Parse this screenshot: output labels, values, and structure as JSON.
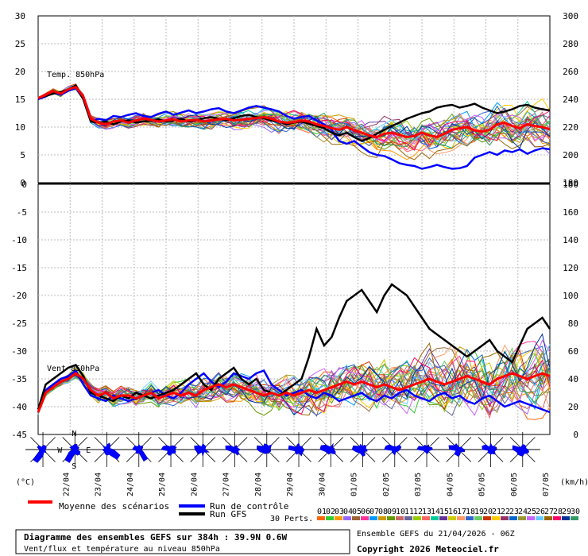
{
  "chart_data": [
    {
      "type": "line",
      "title": "Temp. 850hPa",
      "left_ticks": [
        "30",
        "25",
        "20",
        "15",
        "10",
        "5",
        "0"
      ],
      "right_ticks": [
        "300",
        "280",
        "260",
        "240",
        "220",
        "200",
        "180"
      ],
      "ylim": [
        0,
        30
      ],
      "series": [
        {
          "name": "Moyenne des scénarios",
          "color": "#ff0000",
          "values": [
            15.2,
            15.8,
            16.5,
            16.0,
            16.8,
            17.2,
            15.5,
            11.5,
            10.8,
            10.5,
            11.0,
            11.2,
            10.8,
            11.2,
            11.5,
            11.3,
            11.0,
            11.2,
            11.4,
            11.0,
            11.2,
            11.3,
            11.0,
            11.2,
            11.4,
            11.5,
            11.2,
            11.3,
            11.5,
            11.6,
            11.8,
            11.5,
            11.0,
            10.8,
            10.9,
            11.2,
            11.0,
            10.5,
            10.2,
            9.8,
            9.5,
            10.0,
            9.4,
            9.0,
            8.5,
            8.2,
            8.8,
            9.0,
            8.6,
            8.2,
            8.4,
            9.0,
            8.5,
            8.2,
            8.8,
            9.5,
            9.8,
            10.0,
            9.4,
            9.2,
            9.5,
            10.5,
            10.8,
            10.2,
            9.8,
            10.5,
            10.2,
            10.0,
            9.6
          ]
        },
        {
          "name": "Run de contrôle",
          "color": "#0000ff",
          "values": [
            15.0,
            15.5,
            16.2,
            15.8,
            16.5,
            17.0,
            15.2,
            11.0,
            11.5,
            11.2,
            12.0,
            11.8,
            12.2,
            12.5,
            12.0,
            11.8,
            12.4,
            12.8,
            12.2,
            12.6,
            13.0,
            12.5,
            12.8,
            13.2,
            13.4,
            12.8,
            12.5,
            13.0,
            13.5,
            13.8,
            13.5,
            13.2,
            12.8,
            12.0,
            11.5,
            11.8,
            12.0,
            11.2,
            10.5,
            9.5,
            7.5,
            7.0,
            7.5,
            6.5,
            5.5,
            5.0,
            4.8,
            4.2,
            3.5,
            3.2,
            3.0,
            2.5,
            2.8,
            3.2,
            2.8,
            2.5,
            2.6,
            3.0,
            4.5,
            5.0,
            5.5,
            5.0,
            5.8,
            5.5,
            6.0,
            5.2,
            5.8,
            6.2,
            6.0
          ]
        },
        {
          "name": "Run GFS",
          "color": "#000000",
          "values": [
            15.2,
            15.6,
            16.0,
            16.3,
            16.8,
            17.5,
            15.0,
            11.0,
            10.8,
            11.0,
            10.5,
            11.0,
            11.2,
            10.8,
            11.0,
            11.2,
            11.4,
            11.0,
            11.2,
            11.5,
            11.0,
            11.2,
            11.6,
            11.8,
            11.5,
            11.2,
            11.6,
            12.0,
            12.2,
            11.8,
            11.6,
            11.2,
            11.0,
            10.5,
            10.8,
            11.0,
            10.6,
            10.2,
            9.8,
            9.0,
            8.5,
            9.0,
            8.2,
            7.5,
            8.0,
            8.8,
            9.5,
            10.2,
            10.8,
            11.5,
            12.0,
            12.5,
            12.8,
            13.5,
            13.8,
            14.0,
            13.5,
            13.8,
            14.2,
            13.5,
            13.0,
            12.5,
            12.8,
            13.2,
            13.8,
            14.0,
            13.5,
            13.2,
            13.0
          ]
        }
      ]
    },
    {
      "type": "line",
      "title": "Vent 850hPa",
      "left_ticks": [
        "0",
        "-5",
        "-10",
        "-15",
        "-20",
        "-25",
        "-30",
        "-35",
        "-40",
        "-45"
      ],
      "right_ticks": [
        "180",
        "160",
        "140",
        "120",
        "100",
        "80",
        "60",
        "40",
        "20",
        "0"
      ],
      "ylim": [
        0,
        90
      ],
      "unit": "km/h",
      "series": [
        {
          "name": "Moyenne des scénarios",
          "color": "#ff0000",
          "values": [
            8,
            15,
            17,
            19,
            20,
            22,
            20,
            16,
            14,
            15,
            13,
            14,
            14,
            13,
            14,
            15,
            13,
            14,
            15,
            14,
            15,
            14,
            16,
            17,
            18,
            17,
            18,
            17,
            16,
            15,
            14,
            15,
            14,
            15,
            14,
            15,
            16,
            15,
            16,
            17,
            18,
            19,
            18,
            19,
            18,
            17,
            18,
            17,
            16,
            17,
            18,
            19,
            20,
            19,
            18,
            19,
            20,
            21,
            20,
            19,
            18,
            20,
            21,
            22,
            21,
            20,
            21,
            22,
            21
          ]
        },
        {
          "name": "Run de contrôle",
          "color": "#0000ff",
          "values": [
            8,
            16,
            18,
            20,
            21,
            23,
            18,
            14,
            13,
            12,
            14,
            13,
            12,
            13,
            14,
            15,
            16,
            14,
            13,
            15,
            18,
            20,
            22,
            19,
            17,
            19,
            22,
            21,
            20,
            22,
            23,
            18,
            16,
            14,
            15,
            16,
            14,
            13,
            15,
            14,
            12,
            13,
            14,
            15,
            13,
            12,
            14,
            13,
            15,
            16,
            14,
            13,
            12,
            14,
            15,
            13,
            14,
            12,
            11,
            13,
            14,
            12,
            10,
            11,
            12,
            11,
            10,
            9,
            8
          ]
        },
        {
          "name": "Run GFS",
          "color": "#000000",
          "values": [
            9,
            18,
            20,
            22,
            24,
            25,
            21,
            15,
            14,
            13,
            12,
            14,
            13,
            15,
            14,
            13,
            14,
            15,
            16,
            18,
            20,
            22,
            18,
            16,
            20,
            22,
            24,
            20,
            18,
            20,
            16,
            15,
            14,
            16,
            18,
            20,
            28,
            38,
            32,
            35,
            42,
            48,
            50,
            52,
            48,
            44,
            50,
            54,
            52,
            50,
            46,
            42,
            38,
            36,
            34,
            32,
            30,
            28,
            30,
            32,
            34,
            30,
            28,
            26,
            32,
            38,
            40,
            42,
            38
          ]
        }
      ]
    }
  ],
  "unit_left": "(°C)",
  "unit_right": "(km/h)",
  "compass_labels": {
    "n": "N",
    "s": "S",
    "w": "W",
    "e": "E"
  },
  "dates": [
    "22/04",
    "23/04",
    "24/04",
    "25/04",
    "26/04",
    "27/04",
    "28/04",
    "29/04",
    "30/04",
    "01/05",
    "02/05",
    "03/05",
    "04/05",
    "05/05",
    "06/05",
    "07/05"
  ],
  "legend": {
    "mean": "Moyenne des scénarios",
    "control": "Run de contrôle",
    "gfs": "Run GFS",
    "perts_label": "30 Perts.",
    "perts_numbers": [
      "01",
      "02",
      "03",
      "04",
      "05",
      "06",
      "07",
      "08",
      "09",
      "10",
      "11",
      "12",
      "13",
      "14",
      "15",
      "16",
      "17",
      "18",
      "19",
      "20",
      "21",
      "22",
      "23",
      "24",
      "25",
      "26",
      "27",
      "28",
      "29",
      "30"
    ],
    "perts_colors": [
      "#ff6600",
      "#33cc33",
      "#ff9900",
      "#9966ff",
      "#996633",
      "#ff3399",
      "#0099ff",
      "#cc9900",
      "#669900",
      "#cc6666",
      "#666699",
      "#99cc00",
      "#ff6666",
      "#00cc99",
      "#663399",
      "#cccc00",
      "#ff9966",
      "#3366cc",
      "#66cc66",
      "#cc3300",
      "#ffcc00",
      "#993366",
      "#0066cc",
      "#999933",
      "#cc66ff",
      "#66ccff",
      "#996600",
      "#ff0066",
      "#003399",
      "#339966"
    ]
  },
  "info_box": {
    "title": "Diagramme des ensembles GEFS sur 384h : 39.9N 0.6W",
    "subtitle": "Vent/flux et température au niveau 850hPa"
  },
  "run_info": "Ensemble GEFS du 21/04/2026 - 06Z",
  "copyright": "Copyright 2026 Meteociel.fr"
}
